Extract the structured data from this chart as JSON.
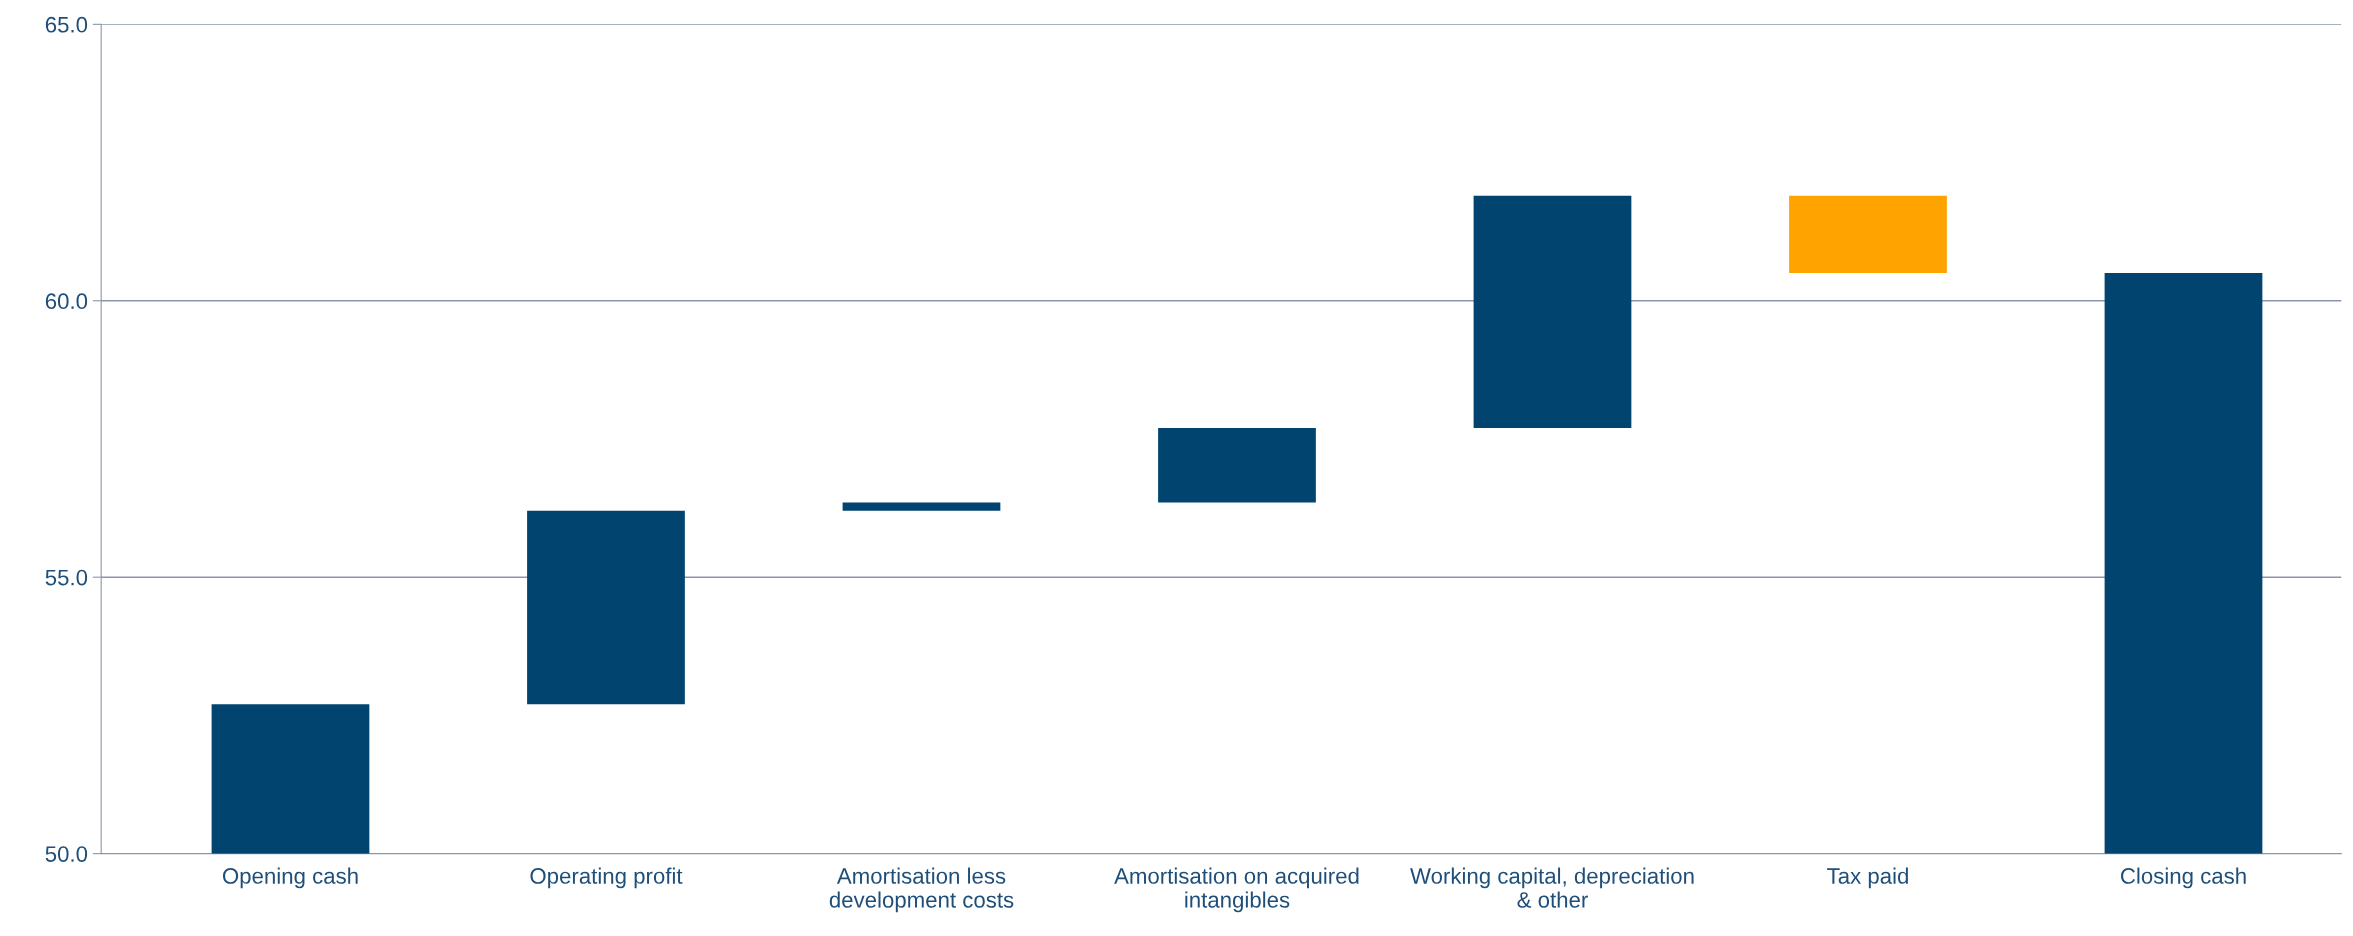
{
  "chart_data": {
    "type": "bar",
    "categories": [
      "Opening cash",
      "Operating profit",
      "Amortisation less\ndevelopment costs",
      "Amortisation on acquired\nintangibles",
      "Working capital, depreciation\n& other",
      "Tax paid",
      "Closing cash"
    ],
    "values": [
      2.7,
      3.5,
      0.15,
      1.35,
      4.2,
      -1.4,
      10.5
    ],
    "base": [
      50,
      52.7,
      56.2,
      56.35,
      57.7,
      61.9,
      50
    ],
    "colors": [
      "#00446f",
      "#00446f",
      "#00446f",
      "#00446f",
      "#00446f",
      "#ffa300",
      "#00446f"
    ],
    "ylim": [
      50,
      65
    ],
    "yticks": [
      {
        "value": 50,
        "label": "50.0"
      },
      {
        "value": 55,
        "label": "55.0"
      },
      {
        "value": 60,
        "label": "60.0"
      },
      {
        "value": 65,
        "label": "65.0"
      }
    ],
    "grid": "y"
  }
}
